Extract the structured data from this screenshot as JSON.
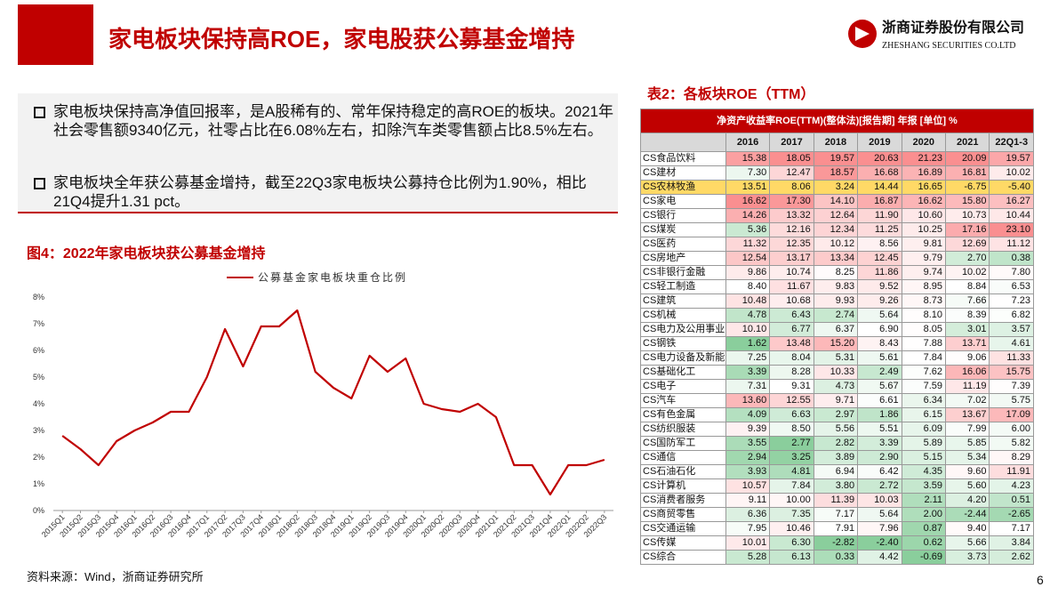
{
  "header": {
    "title": "家电板块保持高ROE，家电股获公募基金增持",
    "logo_cn": "浙商证券股份有限公司",
    "logo_en": "ZHESHANG SECURITIES CO.LTD"
  },
  "bullets": [
    "家电板块保持高净值回报率，是A股稀有的、常年保持稳定的高ROE的板块。2021年社会零售额9340亿元，社零占比在6.08%左右，扣除汽车类零售额占比8.5%左右。",
    "家电板块全年获公募基金增持，截至22Q3家电板块公募持仓比例为1.90%，相比21Q4提升1.31 pct。"
  ],
  "chart_data": {
    "type": "line",
    "title": "图4：2022年家电板块获公募基金增持",
    "categories": [
      "2015Q1",
      "2015Q2",
      "2015Q3",
      "2015Q4",
      "2016Q1",
      "2016Q2",
      "2016Q3",
      "2016Q4",
      "2017Q1",
      "2017Q2",
      "2017Q3",
      "2017Q4",
      "2018Q1",
      "2018Q2",
      "2018Q3",
      "2018Q4",
      "2019Q1",
      "2019Q2",
      "2019Q3",
      "2019Q4",
      "2020Q1",
      "2020Q2",
      "2020Q3",
      "2020Q4",
      "2021Q1",
      "2021Q2",
      "2021Q3",
      "2021Q4",
      "2022Q1",
      "2022Q2",
      "2022Q3"
    ],
    "series": [
      {
        "name": "公募基金家电板块重仓比例",
        "color": "#c00000",
        "values": [
          2.8,
          2.3,
          1.7,
          2.6,
          3.0,
          3.3,
          3.7,
          3.7,
          5.0,
          6.8,
          5.4,
          6.9,
          6.9,
          7.5,
          5.2,
          4.6,
          4.2,
          5.8,
          5.2,
          5.7,
          4.0,
          3.8,
          3.7,
          4.0,
          3.5,
          1.7,
          1.7,
          0.6,
          1.7,
          1.7,
          1.9
        ]
      }
    ],
    "ylim": [
      0,
      8
    ],
    "yticks": [
      {
        "value": 0,
        "label": "0%"
      },
      {
        "value": 1,
        "label": "1%"
      },
      {
        "value": 2,
        "label": "2%"
      },
      {
        "value": 3,
        "label": "3%"
      },
      {
        "value": 4,
        "label": "4%"
      },
      {
        "value": 5,
        "label": "5%"
      },
      {
        "value": 6,
        "label": "6%"
      },
      {
        "value": 7,
        "label": "7%"
      },
      {
        "value": 8,
        "label": "8%"
      }
    ]
  },
  "table": {
    "title": "表2：各板块ROE（TTM）",
    "caption": "净资产收益率ROE(TTM)(整体法)[报告期] 年报 [单位] %",
    "columns": [
      "2016",
      "2017",
      "2018",
      "2019",
      "2020",
      "2021",
      "22Q1-3"
    ],
    "rows": [
      {
        "label": "CS食品饮料",
        "values": [
          "15.38",
          "18.05",
          "19.57",
          "20.63",
          "21.23",
          "20.09",
          "19.57"
        ]
      },
      {
        "label": "CS建材",
        "values": [
          "7.30",
          "12.47",
          "18.57",
          "16.68",
          "16.89",
          "16.81",
          "10.02"
        ]
      },
      {
        "label": "CS农林牧渔",
        "values": [
          "13.51",
          "8.06",
          "3.24",
          "14.44",
          "16.65",
          "-6.75",
          "-5.40"
        ]
      },
      {
        "label": "CS家电",
        "values": [
          "16.62",
          "17.30",
          "14.10",
          "16.87",
          "16.62",
          "15.80",
          "16.27"
        ]
      },
      {
        "label": "CS银行",
        "values": [
          "14.26",
          "13.32",
          "12.64",
          "11.90",
          "10.60",
          "10.73",
          "10.44"
        ]
      },
      {
        "label": "CS煤炭",
        "values": [
          "5.36",
          "12.16",
          "12.34",
          "11.25",
          "10.25",
          "17.16",
          "23.10"
        ]
      },
      {
        "label": "CS医药",
        "values": [
          "11.32",
          "12.35",
          "10.12",
          "8.56",
          "9.81",
          "12.69",
          "11.12"
        ]
      },
      {
        "label": "CS房地产",
        "values": [
          "12.54",
          "13.17",
          "13.34",
          "12.45",
          "9.79",
          "2.70",
          "0.38"
        ]
      },
      {
        "label": "CS非银行金融",
        "values": [
          "9.86",
          "10.74",
          "8.25",
          "11.86",
          "9.74",
          "10.02",
          "7.80"
        ]
      },
      {
        "label": "CS轻工制造",
        "values": [
          "8.40",
          "11.67",
          "9.83",
          "9.52",
          "8.95",
          "8.84",
          "6.53"
        ]
      },
      {
        "label": "CS建筑",
        "values": [
          "10.48",
          "10.68",
          "9.93",
          "9.26",
          "8.73",
          "7.66",
          "7.23"
        ]
      },
      {
        "label": "CS机械",
        "values": [
          "4.78",
          "6.43",
          "2.74",
          "5.64",
          "8.10",
          "8.39",
          "6.82"
        ]
      },
      {
        "label": "CS电力及公用事业",
        "values": [
          "10.10",
          "6.77",
          "6.37",
          "6.90",
          "8.05",
          "3.01",
          "3.57"
        ]
      },
      {
        "label": "CS钢铁",
        "values": [
          "1.62",
          "13.48",
          "15.20",
          "8.43",
          "7.88",
          "13.71",
          "4.61"
        ]
      },
      {
        "label": "CS电力设备及新能",
        "values": [
          "7.25",
          "8.04",
          "5.31",
          "5.61",
          "7.84",
          "9.06",
          "11.33"
        ]
      },
      {
        "label": "CS基础化工",
        "values": [
          "3.39",
          "8.28",
          "10.33",
          "2.49",
          "7.62",
          "16.06",
          "15.75"
        ]
      },
      {
        "label": "CS电子",
        "values": [
          "7.31",
          "9.31",
          "4.73",
          "5.67",
          "7.59",
          "11.19",
          "7.39"
        ]
      },
      {
        "label": "CS汽车",
        "values": [
          "13.60",
          "12.55",
          "9.71",
          "6.61",
          "6.34",
          "7.02",
          "5.75"
        ]
      },
      {
        "label": "CS有色金属",
        "values": [
          "4.09",
          "6.63",
          "2.97",
          "1.86",
          "6.15",
          "13.67",
          "17.09"
        ]
      },
      {
        "label": "CS纺织服装",
        "values": [
          "9.39",
          "8.50",
          "5.56",
          "5.51",
          "6.09",
          "7.99",
          "6.00"
        ]
      },
      {
        "label": "CS国防军工",
        "values": [
          "3.55",
          "2.77",
          "2.82",
          "3.39",
          "5.89",
          "5.85",
          "5.82"
        ]
      },
      {
        "label": "CS通信",
        "values": [
          "2.94",
          "3.25",
          "3.89",
          "2.90",
          "5.15",
          "5.34",
          "8.29"
        ]
      },
      {
        "label": "CS石油石化",
        "values": [
          "3.93",
          "4.81",
          "6.94",
          "6.42",
          "4.35",
          "9.60",
          "11.91"
        ]
      },
      {
        "label": "CS计算机",
        "values": [
          "10.57",
          "7.84",
          "3.80",
          "2.72",
          "3.59",
          "5.60",
          "4.23"
        ]
      },
      {
        "label": "CS消费者服务",
        "values": [
          "9.11",
          "10.00",
          "11.39",
          "10.03",
          "2.11",
          "4.20",
          "0.51"
        ]
      },
      {
        "label": "CS商贸零售",
        "values": [
          "6.36",
          "7.35",
          "7.17",
          "5.64",
          "2.00",
          "-2.44",
          "-2.65"
        ]
      },
      {
        "label": "CS交通运输",
        "values": [
          "7.95",
          "10.46",
          "7.91",
          "7.96",
          "0.87",
          "9.40",
          "7.17"
        ]
      },
      {
        "label": "CS传媒",
        "values": [
          "10.01",
          "6.30",
          "-2.82",
          "-2.40",
          "0.62",
          "5.66",
          "3.84"
        ]
      },
      {
        "label": "CS综合",
        "values": [
          "5.28",
          "6.13",
          "0.33",
          "4.42",
          "-0.69",
          "3.73",
          "2.62"
        ]
      }
    ]
  },
  "footer": {
    "source": "资料来源：Wind，浙商证券研究所",
    "page": "6"
  }
}
